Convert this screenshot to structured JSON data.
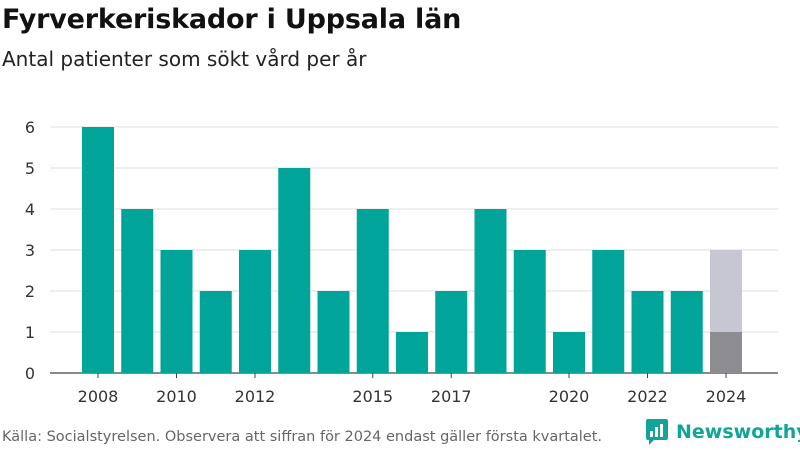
{
  "title": "Fyrverkeriskador i Uppsala län",
  "subtitle": "Antal patienter som sökt vård per år",
  "footer": "Källa: Socialstyrelsen. Observera att siffran för 2024 endast gäller första kvartalet.",
  "brand": "Newsworthy",
  "colors": {
    "bar": "#00a499",
    "bar_partial": "#8c8c91",
    "bar_partial_remainder": "#c7c6d3",
    "brand": "#11a59a"
  },
  "chart_data": {
    "type": "bar",
    "categories": [
      "2008",
      "2009",
      "2010",
      "2011",
      "2012",
      "2013",
      "2014",
      "2015",
      "2016",
      "2017",
      "2018",
      "2019",
      "2020",
      "2021",
      "2022",
      "2023",
      "2024"
    ],
    "values": [
      6,
      4,
      3,
      2,
      3,
      5,
      2,
      4,
      1,
      2,
      4,
      3,
      1,
      3,
      2,
      2,
      1
    ],
    "partial_2024_upper": 3,
    "x_tick_labels": [
      "2008",
      "2010",
      "2012",
      "2015",
      "2017",
      "2020",
      "2022",
      "2024"
    ],
    "y_ticks": [
      0,
      1,
      2,
      3,
      4,
      5,
      6
    ],
    "ylim": [
      0,
      6
    ],
    "grid": true,
    "title": "Fyrverkeriskador i Uppsala län",
    "subtitle": "Antal patienter som sökt vård per år"
  }
}
